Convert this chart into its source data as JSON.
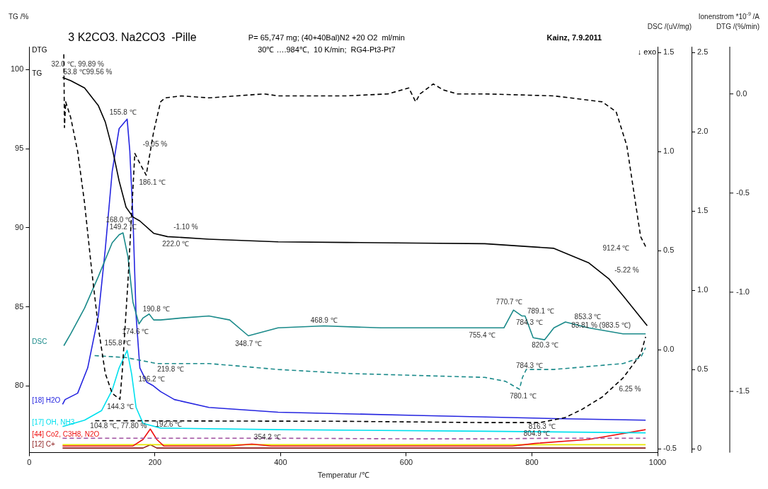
{
  "chart_data": [
    {
      "type": "line",
      "title": "3 K2CO3. Na2CO3  -Pille",
      "subtitle": "P= 65,747 mg; (40+40Bal)N2 +20 O2  ml/min",
      "xlabel": "Temperatur /℃",
      "ylabel": "TG /%",
      "y2label": "DSC /(uV/mg)",
      "y3label": "Ionenstrom *10$^{-9}$ /A",
      "xlim": [
        0,
        1000
      ],
      "xticks": [
        0,
        200,
        400,
        600,
        800,
        1000
      ],
      "ylim": [
        75.78,
        101.45
      ],
      "yticks": [
        80,
        85,
        90,
        95,
        100
      ],
      "y2lim": [
        -0.52,
        1.53
      ],
      "y2ticks": [
        {
          "value": -0.5,
          "label": "-0.5"
        },
        {
          "value": 0,
          "label": "0.0"
        },
        0.5,
        {
          "value": 1,
          "label": "1.0"
        },
        1.5
      ],
      "y3lim": [
        -0.025,
        2.537
      ],
      "y3ticks": [
        0,
        0.5,
        {
          "value": 1,
          "label": "1.0"
        },
        1.5,
        {
          "value": 2,
          "label": "2.0"
        },
        2.5
      ],
      "marker": "none",
      "series": [
        {
          "name": "TG",
          "color": "#000000",
          "line_style": "solid",
          "x": [
            53,
            66,
            88,
            110,
            121,
            132,
            143,
            154,
            165,
            176,
            198,
            220,
            286,
            396,
            505,
            615,
            725,
            835,
            890,
            923,
            945,
            983.5
          ],
          "values": [
            99.5,
            99.3,
            98.84,
            97.72,
            96.69,
            95.03,
            92.96,
            91.3,
            90.68,
            90.43,
            89.65,
            89.44,
            89.28,
            89.11,
            89.07,
            89.03,
            88.99,
            88.7,
            87.79,
            86.75,
            85.71,
            83.81
          ]
        },
        {
          "name": "DSC",
          "color": "#1a8a8a",
          "axis": "y2",
          "line_style": "solid",
          "x": [
            55,
            66,
            88,
            110,
            132,
            143,
            149.2,
            157,
            165,
            174.6,
            181,
            190.8,
            198,
            209,
            242,
            286,
            319,
            348.7,
            396,
            468.9,
            560,
            725,
            755.4,
            770.7,
            784.3,
            789.1,
            802,
            820.3,
            835,
            853.3,
            890,
            945,
            981
          ],
          "values": [
            0.02,
            0.08,
            0.21,
            0.37,
            0.54,
            0.58,
            0.59,
            0.47,
            0.24,
            0.13,
            0.16,
            0.18,
            0.15,
            0.15,
            0.16,
            0.17,
            0.15,
            0.07,
            0.11,
            0.12,
            0.11,
            0.11,
            0.11,
            0.2,
            0.17,
            0.17,
            0.06,
            0.05,
            0.11,
            0.14,
            0.11,
            0.08,
            0.08
          ]
        },
        {
          "color": "#1a8a8a",
          "axis": "y2",
          "line_style": "dashed",
          "x": [
            104,
            154,
            203,
            286,
            396,
            505,
            615,
            725,
            758,
            780.1,
            785,
            791,
            835,
            945,
            973,
            981
          ],
          "values": [
            -0.03,
            -0.04,
            -0.07,
            -0.07,
            -0.1,
            -0.12,
            -0.13,
            -0.14,
            -0.16,
            -0.2,
            -0.14,
            -0.1,
            -0.1,
            -0.07,
            -0.04,
            0.01
          ]
        },
        {
          "color": "#000000",
          "line_style": "dashed",
          "x": [
            104.8,
            286,
            505,
            725,
            813,
            853,
            879,
            912,
            945,
            973,
            981
          ],
          "values": [
            77.8,
            77.78,
            77.76,
            77.68,
            77.68,
            78.0,
            78.5,
            79.3,
            80.5,
            82.0,
            83.1
          ]
        },
        {
          "name": "[18] H2O",
          "color": "#2525e0",
          "axis": "y3",
          "line_style": "solid",
          "x": [
            53,
            57,
            77,
            93,
            110,
            121,
            132,
            143,
            155.8,
            160,
            165,
            170,
            176,
            187,
            196.2,
            209,
            231,
            286,
            396,
            615,
            835,
            981
          ],
          "values": [
            0.28,
            0.31,
            0.35,
            0.51,
            0.84,
            1.26,
            1.75,
            2.02,
            2.08,
            1.88,
            1.46,
            0.84,
            0.51,
            0.42,
            0.4,
            0.36,
            0.31,
            0.26,
            0.23,
            0.21,
            0.19,
            0.18
          ]
        },
        {
          "name": "[17] OH, NH3",
          "color": "#00e0ee",
          "axis": "y3",
          "line_style": "solid",
          "x": [
            53,
            88,
            115,
            132,
            143,
            155.8,
            163,
            170,
            181,
            209,
            396,
            725,
            981
          ],
          "values": [
            0.14,
            0.18,
            0.24,
            0.37,
            0.51,
            0.62,
            0.47,
            0.26,
            0.16,
            0.13,
            0.12,
            0.11,
            0.1
          ]
        },
        {
          "color": "#a050a0",
          "axis": "y3",
          "line_style": "dashed",
          "x": [
            53,
            396,
            615,
            725,
            835,
            981
          ],
          "values": [
            0.066,
            0.066,
            0.062,
            0.062,
            0.066,
            0.066
          ]
        },
        {
          "name": "[44] Co2, C3H8, N2O",
          "color": "#ee1111",
          "axis": "y3",
          "line_style": "solid",
          "x": [
            53,
            165,
            181,
            192.6,
            203,
            214,
            319,
            354.2,
            385,
            769,
            804.9,
            890,
            981
          ],
          "values": [
            0.017,
            0.017,
            0.058,
            0.124,
            0.058,
            0.017,
            0.017,
            0.029,
            0.017,
            0.017,
            0.033,
            0.058,
            0.12
          ]
        },
        {
          "color": "#e8e800",
          "axis": "y3",
          "line_style": "solid",
          "x": [
            53,
            981
          ],
          "values": [
            0.025,
            0.025
          ]
        },
        {
          "name": "[12] C+",
          "color": "#8b1a1a",
          "axis": "y3",
          "line_style": "solid",
          "x": [
            53,
            181,
            192.6,
            203,
            981
          ],
          "values": [
            0.004,
            0.004,
            0.025,
            0.004,
            0.004
          ]
        }
      ],
      "annotations": [
        "30℃ ….984℃,  10 K/min;  RG4-Pt3-Pt7",
        "Kainz, 7.9.2011",
        "↓ exo",
        "32.0 ℃, 99.89 %",
        "53.8 ℃99.56 %",
        "155.8 ℃",
        "-9.05 %",
        "186.1 ℃",
        "168.0 ℃",
        "149.2 ℃",
        "-1.10 %",
        "222.0 ℃",
        "912.4 ℃",
        "-5.22 %",
        "190.8 ℃",
        "174.6 ℃",
        "348.7 ℃",
        "468.9 ℃",
        "770.7 ℃",
        "789.1 ℃",
        "784.3 ℃",
        "755.4 ℃",
        "820.3 ℃",
        "853.3 ℃",
        "83.81 % (983.5 ℃)",
        "155.8 ℃",
        "219.8 ℃",
        "784.3 ℃",
        "196.2 ℃",
        "780.1 ℃",
        "6.25 %",
        "144.3 ℃",
        "104.8 ℃, 77.80 %",
        "816.3 ℃",
        "192.6 ℃",
        "354.2 ℃",
        "804.9 ℃"
      ]
    },
    {
      "type": "line",
      "ylabel": "DTG /(%/min)",
      "xlim": [
        0,
        1000
      ],
      "ylim": [
        -1.809,
        0.238
      ],
      "yticks": [
        {
          "value": -1.5,
          "label": "-1.5"
        },
        {
          "value": -1,
          "label": "-1.0"
        },
        -0.5,
        {
          "value": 0,
          "label": "0.0"
        }
      ],
      "tick_labels": "y",
      "marker": "none",
      "series": [
        {
          "name": "DTG",
          "color": "#000000",
          "line_style": "dashed",
          "x": [
            55,
            56,
            58,
            66,
            77,
            88,
            99,
            110,
            121,
            132,
            144.3,
            148,
            157,
            168,
            176,
            186.1,
            198,
            209,
            216,
            242,
            286,
            330,
            374,
            396,
            505,
            571,
            604,
            615,
            622,
            643,
            659,
            681,
            725,
            835,
            912,
            934,
            951,
            962,
            973,
            981
          ],
          "values": [
            0.2,
            -0.17,
            -0.04,
            -0.12,
            -0.29,
            -0.55,
            -0.88,
            -1.18,
            -1.41,
            -1.51,
            -1.54,
            -1.4,
            -0.95,
            -0.3,
            -0.35,
            -0.41,
            -0.19,
            -0.04,
            -0.02,
            -0.01,
            -0.02,
            -0.01,
            0,
            -0.01,
            -0.01,
            0,
            0.03,
            -0.04,
            0,
            0.05,
            0.02,
            0,
            0,
            -0.01,
            -0.04,
            -0.09,
            -0.26,
            -0.49,
            -0.72,
            -0.77
          ]
        }
      ]
    }
  ]
}
